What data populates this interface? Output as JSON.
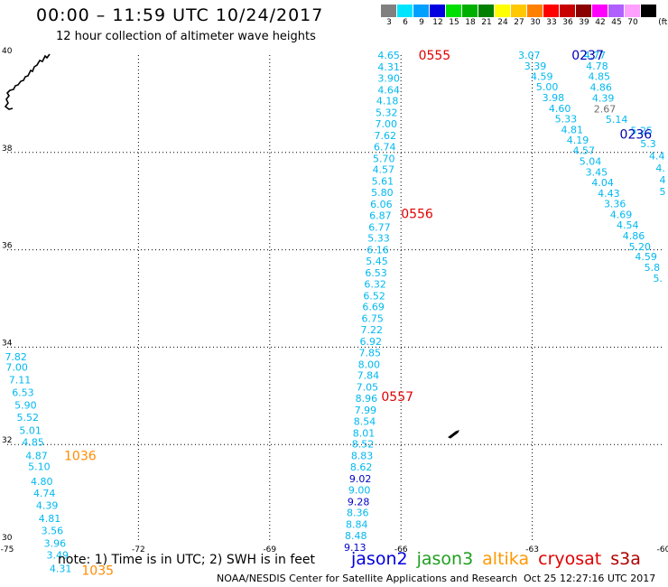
{
  "header": {
    "title": "00:00 – 11:59 UTC 10/24/2017",
    "subtitle": "12 hour collection of altimeter wave heights"
  },
  "legend": {
    "unit": "(ft)",
    "bins": [
      {
        "label": "3",
        "color": "#808080"
      },
      {
        "label": "6",
        "color": "#00e5ff"
      },
      {
        "label": "9",
        "color": "#00a0ff"
      },
      {
        "label": "12",
        "color": "#0000e0"
      },
      {
        "label": "15",
        "color": "#00e000"
      },
      {
        "label": "18",
        "color": "#00b000"
      },
      {
        "label": "21",
        "color": "#008000"
      },
      {
        "label": "24",
        "color": "#ffff00"
      },
      {
        "label": "27",
        "color": "#ffc800"
      },
      {
        "label": "30",
        "color": "#ff8000"
      },
      {
        "label": "33",
        "color": "#ff0000"
      },
      {
        "label": "36",
        "color": "#c80000"
      },
      {
        "label": "39",
        "color": "#8b0000"
      },
      {
        "label": "42",
        "color": "#ff00ff"
      },
      {
        "label": "45",
        "color": "#b060ff"
      },
      {
        "label": "70",
        "color": "#ffa0ff"
      },
      {
        "label": "",
        "color": "#000000"
      }
    ]
  },
  "map": {
    "lon_ticks": [
      "-75",
      "-72",
      "-69",
      "-66",
      "-63",
      "-60"
    ],
    "lat_ticks": [
      "30",
      "32",
      "34",
      "36",
      "38",
      "40"
    ],
    "grid_lons": [
      -72,
      -69,
      -66,
      -63
    ],
    "grid_lats": [
      32,
      34,
      36,
      38
    ]
  },
  "colors": {
    "cyan": "#00b8f0",
    "blue": "#0000c8",
    "red": "#e00000",
    "orange": "#ff8c00",
    "navy": "#0000b4",
    "grey": "#707070",
    "green": "#20a020"
  },
  "tracks": [
    {
      "name": "left",
      "points": [
        {
          "lon": -74.8,
          "lat": 33.8,
          "v": "7.82",
          "c": "cyan"
        },
        {
          "lon": -74.78,
          "lat": 33.59,
          "v": "7.00",
          "c": "cyan"
        },
        {
          "lon": -74.71,
          "lat": 33.33,
          "v": "7.11",
          "c": "cyan"
        },
        {
          "lon": -74.64,
          "lat": 33.07,
          "v": "6.53",
          "c": "cyan"
        },
        {
          "lon": -74.58,
          "lat": 32.81,
          "v": "5.90",
          "c": "cyan"
        },
        {
          "lon": -74.53,
          "lat": 32.56,
          "v": "5.52",
          "c": "cyan"
        },
        {
          "lon": -74.47,
          "lat": 32.29,
          "v": "5.01",
          "c": "cyan"
        },
        {
          "lon": -74.41,
          "lat": 32.05,
          "v": "4.85",
          "c": "cyan"
        },
        {
          "lon": -74.33,
          "lat": 31.77,
          "v": "4.87",
          "c": "cyan"
        },
        {
          "lon": -74.27,
          "lat": 31.55,
          "v": "5.10",
          "c": "cyan"
        },
        {
          "lon": -74.21,
          "lat": 31.24,
          "v": "4.80",
          "c": "cyan"
        },
        {
          "lon": -74.15,
          "lat": 31.0,
          "v": "4.74",
          "c": "cyan"
        },
        {
          "lon": -74.09,
          "lat": 30.75,
          "v": "4.39",
          "c": "cyan"
        },
        {
          "lon": -74.03,
          "lat": 30.48,
          "v": "4.81",
          "c": "cyan"
        },
        {
          "lon": -73.97,
          "lat": 30.23,
          "v": "3.56",
          "c": "cyan"
        },
        {
          "lon": -73.91,
          "lat": 29.97,
          "v": "3.96",
          "c": "cyan"
        },
        {
          "lon": -73.85,
          "lat": 29.73,
          "v": "3.49",
          "c": "cyan"
        },
        {
          "lon": -73.78,
          "lat": 29.45,
          "v": "4.31",
          "c": "cyan"
        }
      ]
    },
    {
      "name": "center",
      "points": [
        {
          "lon": -66.28,
          "lat": 40.0,
          "v": "4.65",
          "c": "cyan"
        },
        {
          "lon": -66.28,
          "lat": 39.76,
          "v": "4.31",
          "c": "cyan"
        },
        {
          "lon": -66.28,
          "lat": 39.53,
          "v": "3.90",
          "c": "cyan"
        },
        {
          "lon": -66.28,
          "lat": 39.29,
          "v": "4.64",
          "c": "cyan"
        },
        {
          "lon": -66.31,
          "lat": 39.06,
          "v": "4.18",
          "c": "cyan"
        },
        {
          "lon": -66.33,
          "lat": 38.82,
          "v": "5.32",
          "c": "cyan"
        },
        {
          "lon": -66.34,
          "lat": 38.59,
          "v": "7.00",
          "c": "cyan"
        },
        {
          "lon": -66.36,
          "lat": 38.35,
          "v": "7.62",
          "c": "cyan"
        },
        {
          "lon": -66.37,
          "lat": 38.12,
          "v": "6.74",
          "c": "cyan"
        },
        {
          "lon": -66.39,
          "lat": 37.88,
          "v": "5.70",
          "c": "cyan"
        },
        {
          "lon": -66.4,
          "lat": 37.65,
          "v": "4.57",
          "c": "cyan"
        },
        {
          "lon": -66.42,
          "lat": 37.41,
          "v": "5.61",
          "c": "cyan"
        },
        {
          "lon": -66.43,
          "lat": 37.18,
          "v": "5.80",
          "c": "cyan"
        },
        {
          "lon": -66.45,
          "lat": 36.94,
          "v": "6.06",
          "c": "cyan"
        },
        {
          "lon": -66.47,
          "lat": 36.71,
          "v": "6.87",
          "c": "cyan"
        },
        {
          "lon": -66.49,
          "lat": 36.47,
          "v": "6.77",
          "c": "cyan"
        },
        {
          "lon": -66.51,
          "lat": 36.24,
          "v": "5.33",
          "c": "cyan"
        },
        {
          "lon": -66.53,
          "lat": 36.0,
          "v": "6.16",
          "c": "cyan"
        },
        {
          "lon": -66.55,
          "lat": 35.77,
          "v": "5.45",
          "c": "cyan"
        },
        {
          "lon": -66.57,
          "lat": 35.53,
          "v": "6.53",
          "c": "cyan"
        },
        {
          "lon": -66.59,
          "lat": 35.3,
          "v": "6.32",
          "c": "cyan"
        },
        {
          "lon": -66.61,
          "lat": 35.06,
          "v": "6.52",
          "c": "cyan"
        },
        {
          "lon": -66.63,
          "lat": 34.83,
          "v": "6.69",
          "c": "cyan"
        },
        {
          "lon": -66.65,
          "lat": 34.59,
          "v": "6.75",
          "c": "cyan"
        },
        {
          "lon": -66.67,
          "lat": 34.36,
          "v": "7.22",
          "c": "cyan"
        },
        {
          "lon": -66.69,
          "lat": 34.12,
          "v": "6.92",
          "c": "cyan"
        },
        {
          "lon": -66.71,
          "lat": 33.89,
          "v": "7.85",
          "c": "cyan"
        },
        {
          "lon": -66.73,
          "lat": 33.65,
          "v": "8.00",
          "c": "cyan"
        },
        {
          "lon": -66.75,
          "lat": 33.42,
          "v": "7.84",
          "c": "cyan"
        },
        {
          "lon": -66.77,
          "lat": 33.18,
          "v": "7.05",
          "c": "cyan"
        },
        {
          "lon": -66.79,
          "lat": 32.95,
          "v": "8.96",
          "c": "cyan"
        },
        {
          "lon": -66.81,
          "lat": 32.71,
          "v": "7.99",
          "c": "cyan"
        },
        {
          "lon": -66.83,
          "lat": 32.48,
          "v": "8.54",
          "c": "cyan"
        },
        {
          "lon": -66.85,
          "lat": 32.24,
          "v": "8.01",
          "c": "cyan"
        },
        {
          "lon": -66.87,
          "lat": 32.01,
          "v": "8.52",
          "c": "cyan"
        },
        {
          "lon": -66.89,
          "lat": 31.77,
          "v": "8.83",
          "c": "cyan"
        },
        {
          "lon": -66.91,
          "lat": 31.54,
          "v": "8.62",
          "c": "cyan"
        },
        {
          "lon": -66.93,
          "lat": 31.3,
          "v": "9.02",
          "c": "blue"
        },
        {
          "lon": -66.95,
          "lat": 31.07,
          "v": "9.00",
          "c": "cyan"
        },
        {
          "lon": -66.97,
          "lat": 30.83,
          "v": "9.28",
          "c": "blue"
        },
        {
          "lon": -66.99,
          "lat": 30.6,
          "v": "8.36",
          "c": "cyan"
        },
        {
          "lon": -67.01,
          "lat": 30.36,
          "v": "8.84",
          "c": "cyan"
        },
        {
          "lon": -67.03,
          "lat": 30.13,
          "v": "8.48",
          "c": "cyan"
        },
        {
          "lon": -67.05,
          "lat": 29.89,
          "v": "9.13",
          "c": "blue"
        }
      ]
    },
    {
      "name": "right-a",
      "points": [
        {
          "lon": -63.07,
          "lat": 40.0,
          "v": "3.07",
          "c": "cyan"
        },
        {
          "lon": -62.93,
          "lat": 39.78,
          "v": "3.39",
          "c": "cyan"
        },
        {
          "lon": -62.78,
          "lat": 39.56,
          "v": "4.59",
          "c": "cyan"
        },
        {
          "lon": -62.66,
          "lat": 39.35,
          "v": "5.00",
          "c": "cyan"
        },
        {
          "lon": -62.52,
          "lat": 39.13,
          "v": "3.98",
          "c": "cyan"
        },
        {
          "lon": -62.37,
          "lat": 38.91,
          "v": "4.60",
          "c": "cyan"
        },
        {
          "lon": -62.23,
          "lat": 38.69,
          "v": "5.33",
          "c": "cyan"
        },
        {
          "lon": -62.09,
          "lat": 38.47,
          "v": "4.81",
          "c": "cyan"
        },
        {
          "lon": -61.96,
          "lat": 38.26,
          "v": "4.19",
          "c": "cyan"
        },
        {
          "lon": -61.82,
          "lat": 38.04,
          "v": "4.57",
          "c": "cyan"
        },
        {
          "lon": -61.67,
          "lat": 37.82,
          "v": "5.04",
          "c": "cyan"
        },
        {
          "lon": -61.53,
          "lat": 37.6,
          "v": "3.45",
          "c": "cyan"
        },
        {
          "lon": -61.39,
          "lat": 37.38,
          "v": "4.04",
          "c": "cyan"
        },
        {
          "lon": -61.25,
          "lat": 37.16,
          "v": "4.43",
          "c": "cyan"
        },
        {
          "lon": -61.11,
          "lat": 36.95,
          "v": "3.36",
          "c": "cyan"
        },
        {
          "lon": -60.97,
          "lat": 36.73,
          "v": "4.69",
          "c": "cyan"
        },
        {
          "lon": -60.82,
          "lat": 36.51,
          "v": "4.54",
          "c": "cyan"
        },
        {
          "lon": -60.68,
          "lat": 36.29,
          "v": "4.86",
          "c": "cyan"
        },
        {
          "lon": -60.54,
          "lat": 36.07,
          "v": "5.20",
          "c": "cyan"
        },
        {
          "lon": -60.4,
          "lat": 35.86,
          "v": "4.59",
          "c": "cyan"
        },
        {
          "lon": -60.26,
          "lat": 35.64,
          "v": "5.8",
          "c": "cyan"
        },
        {
          "lon": -60.13,
          "lat": 35.42,
          "v": "5.",
          "c": "cyan"
        }
      ]
    },
    {
      "name": "right-b",
      "points": [
        {
          "lon": -61.57,
          "lat": 40.0,
          "v": "4.77",
          "c": "cyan"
        },
        {
          "lon": -61.52,
          "lat": 39.78,
          "v": "4.78",
          "c": "cyan"
        },
        {
          "lon": -61.47,
          "lat": 39.56,
          "v": "4.85",
          "c": "cyan"
        },
        {
          "lon": -61.43,
          "lat": 39.34,
          "v": "4.86",
          "c": "cyan"
        },
        {
          "lon": -61.38,
          "lat": 39.12,
          "v": "4.39",
          "c": "cyan"
        },
        {
          "lon": -61.34,
          "lat": 38.9,
          "v": "2.67",
          "c": "grey"
        },
        {
          "lon": -61.07,
          "lat": 38.68,
          "v": "5.14",
          "c": "cyan"
        },
        {
          "lon": -60.5,
          "lat": 38.45,
          "v": "5.25",
          "c": "cyan"
        },
        {
          "lon": -60.35,
          "lat": 38.18,
          "v": "5.3",
          "c": "cyan"
        },
        {
          "lon": -60.15,
          "lat": 37.93,
          "v": "4.4",
          "c": "cyan"
        },
        {
          "lon": -60.07,
          "lat": 37.68,
          "v": "4.",
          "c": "cyan"
        },
        {
          "lon": -60.02,
          "lat": 37.44,
          "v": "4",
          "c": "cyan"
        },
        {
          "lon": -60.02,
          "lat": 37.2,
          "v": "5",
          "c": "cyan"
        }
      ]
    }
  ],
  "time_labels": [
    {
      "lon": -65.6,
      "lat": 40.0,
      "text": "0555",
      "c": "red"
    },
    {
      "lon": -62.1,
      "lat": 40.0,
      "text": "0237",
      "c": "navy"
    },
    {
      "lon": -61.0,
      "lat": 38.38,
      "text": "0236",
      "c": "navy"
    },
    {
      "lon": -66.0,
      "lat": 36.74,
      "text": "0556",
      "c": "red"
    },
    {
      "lon": -66.45,
      "lat": 32.99,
      "text": "0557",
      "c": "red"
    },
    {
      "lon": -73.7,
      "lat": 31.77,
      "text": "1036",
      "c": "orange"
    },
    {
      "lon": -73.3,
      "lat": 29.42,
      "text": "1035",
      "c": "orange"
    }
  ],
  "note": "note: 1) Time is in UTC; 2) SWH is in feet",
  "satellites": [
    {
      "name": "jason2",
      "color": "#0000e0"
    },
    {
      "name": "jason3",
      "color": "#20a020"
    },
    {
      "name": "altika",
      "color": "#ff9900"
    },
    {
      "name": "cryosat",
      "color": "#e00000"
    },
    {
      "name": "s3a",
      "color": "#b00000"
    }
  ],
  "footer": {
    "credit": "NOAA/NESDIS Center for Satellite Applications and Research",
    "timestamp": "Oct 25 12:27:16 UTC 2017"
  }
}
